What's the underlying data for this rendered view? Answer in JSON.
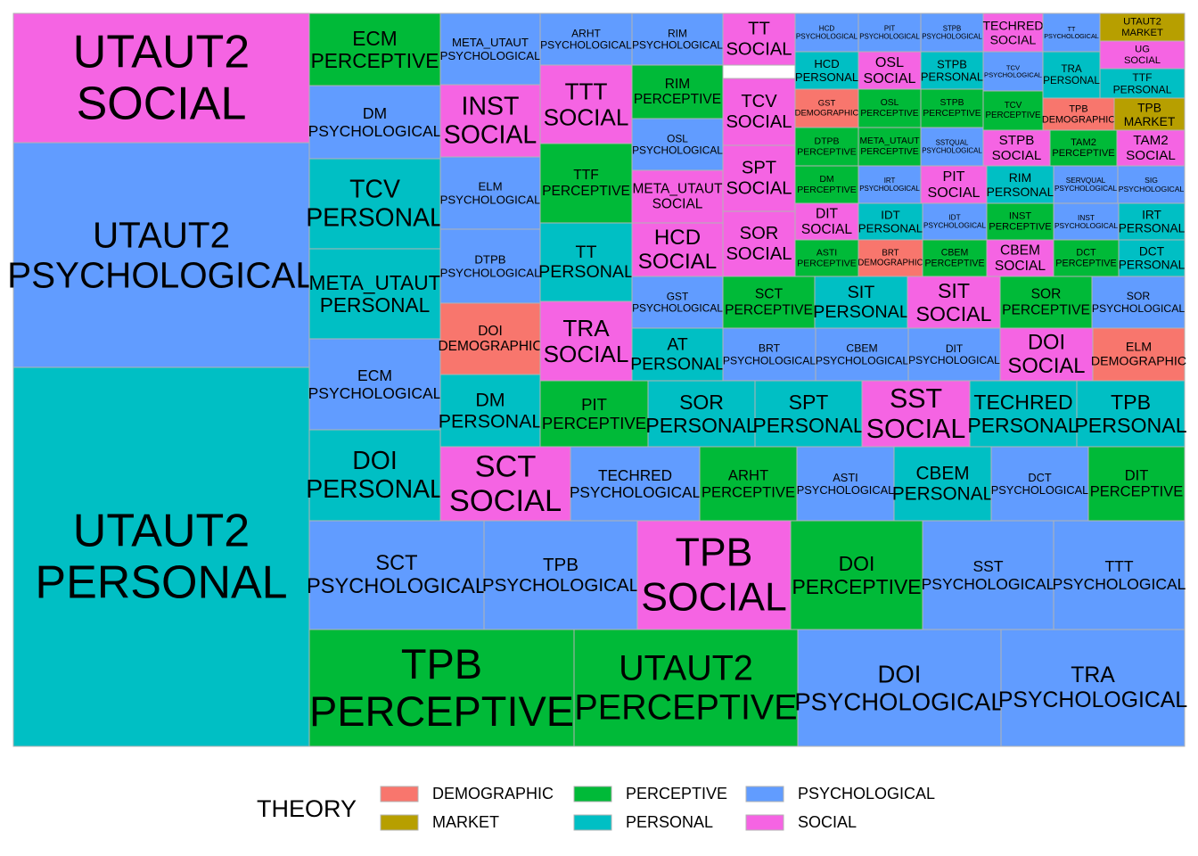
{
  "chart_data": {
    "type": "treemap",
    "title": "",
    "legend": {
      "title": "THEORY",
      "position": "bottom",
      "entries": [
        {
          "label": "DEMOGRAPHIC",
          "color": "#F8766D"
        },
        {
          "label": "MARKET",
          "color": "#B79F00"
        },
        {
          "label": "PERCEPTIVE",
          "color": "#00BA38"
        },
        {
          "label": "PERSONAL",
          "color": "#00BFC4"
        },
        {
          "label": "PSYCHOLOGICAL",
          "color": "#619CFF"
        },
        {
          "label": "SOCIAL",
          "color": "#F564E3"
        }
      ]
    },
    "tiles": [
      {
        "label": [
          "UTAUT2",
          "SOCIAL"
        ],
        "group": "SOCIAL"
      },
      {
        "label": [
          "UTAUT2",
          "PSYCHOLOGICAL"
        ],
        "group": "PSYCHOLOGICAL"
      },
      {
        "label": [
          "UTAUT2",
          "PERSONAL"
        ],
        "group": "PERSONAL"
      },
      {
        "label": [
          "ECM",
          "PERCEPTIVE"
        ],
        "group": "PERCEPTIVE"
      },
      {
        "label": [
          "DM",
          "PSYCHOLOGICAL"
        ],
        "group": "PSYCHOLOGICAL"
      },
      {
        "label": [
          "TCV",
          "PERSONAL"
        ],
        "group": "PERSONAL"
      },
      {
        "label": [
          "META_UTAUT",
          "PERSONAL"
        ],
        "group": "PERSONAL"
      },
      {
        "label": [
          "ECM",
          "PSYCHOLOGICAL"
        ],
        "group": "PSYCHOLOGICAL"
      },
      {
        "label": [
          "DOI",
          "PERSONAL"
        ],
        "group": "PERSONAL"
      },
      {
        "label": [
          "META_UTAUT",
          "PSYCHOLOGICAL"
        ],
        "group": "PSYCHOLOGICAL"
      },
      {
        "label": [
          "INST",
          "SOCIAL"
        ],
        "group": "SOCIAL"
      },
      {
        "label": [
          "ELM",
          "PSYCHOLOGICAL"
        ],
        "group": "PSYCHOLOGICAL"
      },
      {
        "label": [
          "DTPB",
          "PSYCHOLOGICAL"
        ],
        "group": "PSYCHOLOGICAL"
      },
      {
        "label": [
          "DOI",
          "DEMOGRAPHIC"
        ],
        "group": "DEMOGRAPHIC"
      },
      {
        "label": [
          "DM",
          "PERSONAL"
        ],
        "group": "PERSONAL"
      },
      {
        "label": [
          "ARHT",
          "PSYCHOLOGICAL"
        ],
        "group": "PSYCHOLOGICAL"
      },
      {
        "label": [
          "TTT",
          "SOCIAL"
        ],
        "group": "SOCIAL"
      },
      {
        "label": [
          "TTF",
          "PERCEPTIVE"
        ],
        "group": "PERCEPTIVE"
      },
      {
        "label": [
          "TT",
          "PERSONAL"
        ],
        "group": "PERSONAL"
      },
      {
        "label": [
          "TRA",
          "SOCIAL"
        ],
        "group": "SOCIAL"
      },
      {
        "label": [
          "RIM",
          "PSYCHOLOGICAL"
        ],
        "group": "PSYCHOLOGICAL"
      },
      {
        "label": [
          "RIM",
          "PERCEPTIVE"
        ],
        "group": "PERCEPTIVE"
      },
      {
        "label": [
          "OSL",
          "PSYCHOLOGICAL"
        ],
        "group": "PSYCHOLOGICAL"
      },
      {
        "label": [
          "META_UTAUT",
          "SOCIAL"
        ],
        "group": "SOCIAL"
      },
      {
        "label": [
          "HCD",
          "SOCIAL"
        ],
        "group": "SOCIAL"
      },
      {
        "label": [
          "GST",
          "PSYCHOLOGICAL"
        ],
        "group": "PSYCHOLOGICAL"
      },
      {
        "label": [
          "AT",
          "PERSONAL"
        ],
        "group": "PERSONAL"
      },
      {
        "label": [
          "TT",
          "SOCIAL"
        ],
        "group": "SOCIAL"
      },
      {
        "label": [
          "TCV",
          "SOCIAL"
        ],
        "group": "SOCIAL"
      },
      {
        "label": [
          "SPT",
          "SOCIAL"
        ],
        "group": "SOCIAL"
      },
      {
        "label": [
          "SOR",
          "SOCIAL"
        ],
        "group": "SOCIAL"
      },
      {
        "label": [
          "HCD",
          "PSYCHOLOGICAL"
        ],
        "group": "PSYCHOLOGICAL"
      },
      {
        "label": [
          "PIT",
          "PSYCHOLOGICAL"
        ],
        "group": "PSYCHOLOGICAL"
      },
      {
        "label": [
          "STPB",
          "PSYCHOLOGICAL"
        ],
        "group": "PSYCHOLOGICAL"
      },
      {
        "label": [
          "TECHRED",
          "SOCIAL"
        ],
        "group": "SOCIAL"
      },
      {
        "label": [
          "TT",
          "PSYCHOLOGICAL"
        ],
        "group": "PSYCHOLOGICAL"
      },
      {
        "label": [
          "UTAUT2",
          "MARKET"
        ],
        "group": "MARKET"
      },
      {
        "label": [
          "HCD",
          "PERSONAL"
        ],
        "group": "PERSONAL"
      },
      {
        "label": [
          "OSL",
          "SOCIAL"
        ],
        "group": "SOCIAL"
      },
      {
        "label": [
          "STPB",
          "PERSONAL"
        ],
        "group": "PERSONAL"
      },
      {
        "label": [
          "TCV",
          "PSYCHOLOGICAL"
        ],
        "group": "PSYCHOLOGICAL"
      },
      {
        "label": [
          "UG",
          "SOCIAL"
        ],
        "group": "SOCIAL"
      },
      {
        "label": [
          "TRA",
          "PERSONAL"
        ],
        "group": "PERSONAL"
      },
      {
        "label": [
          "TTF",
          "PERSONAL"
        ],
        "group": "PERSONAL"
      },
      {
        "label": [
          "GST",
          "DEMOGRAPHIC"
        ],
        "group": "DEMOGRAPHIC"
      },
      {
        "label": [
          "OSL",
          "PERCEPTIVE"
        ],
        "group": "PERCEPTIVE"
      },
      {
        "label": [
          "STPB",
          "PERCEPTIVE"
        ],
        "group": "PERCEPTIVE"
      },
      {
        "label": [
          "TCV",
          "PERCEPTIVE"
        ],
        "group": "PERCEPTIVE"
      },
      {
        "label": [
          "TPB",
          "DEMOGRAPHIC"
        ],
        "group": "DEMOGRAPHIC"
      },
      {
        "label": [
          "TPB",
          "MARKET"
        ],
        "group": "MARKET"
      },
      {
        "label": [
          "DTPB",
          "PERCEPTIVE"
        ],
        "group": "PERCEPTIVE"
      },
      {
        "label": [
          "META_UTAUT",
          "PERCEPTIVE"
        ],
        "group": "PERCEPTIVE"
      },
      {
        "label": [
          "SSTQUAL",
          "PSYCHOLOGICAL"
        ],
        "group": "PSYCHOLOGICAL"
      },
      {
        "label": [
          "STPB",
          "SOCIAL"
        ],
        "group": "SOCIAL"
      },
      {
        "label": [
          "TAM2",
          "PERCEPTIVE"
        ],
        "group": "PERCEPTIVE"
      },
      {
        "label": [
          "TAM2",
          "SOCIAL"
        ],
        "group": "SOCIAL"
      },
      {
        "label": [
          "DM",
          "PERCEPTIVE"
        ],
        "group": "PERCEPTIVE"
      },
      {
        "label": [
          "IRT",
          "PSYCHOLOGICAL"
        ],
        "group": "PSYCHOLOGICAL"
      },
      {
        "label": [
          "PIT",
          "SOCIAL"
        ],
        "group": "SOCIAL"
      },
      {
        "label": [
          "RIM",
          "PERSONAL"
        ],
        "group": "PERSONAL"
      },
      {
        "label": [
          "SERVQUAL",
          "PSYCHOLOGICAL"
        ],
        "group": "PSYCHOLOGICAL"
      },
      {
        "label": [
          "SIG",
          "PSYCHOLOGICAL"
        ],
        "group": "PSYCHOLOGICAL"
      },
      {
        "label": [
          "DIT",
          "SOCIAL"
        ],
        "group": "SOCIAL"
      },
      {
        "label": [
          "IDT",
          "PERSONAL"
        ],
        "group": "PERSONAL"
      },
      {
        "label": [
          "IDT",
          "PSYCHOLOGICAL"
        ],
        "group": "PSYCHOLOGICAL"
      },
      {
        "label": [
          "INST",
          "PERCEPTIVE"
        ],
        "group": "PERCEPTIVE"
      },
      {
        "label": [
          "INST",
          "PSYCHOLOGICAL"
        ],
        "group": "PSYCHOLOGICAL"
      },
      {
        "label": [
          "IRT",
          "PERSONAL"
        ],
        "group": "PERSONAL"
      },
      {
        "label": [
          "ASTI",
          "PERCEPTIVE"
        ],
        "group": "PERCEPTIVE"
      },
      {
        "label": [
          "BRT",
          "DEMOGRAPHIC"
        ],
        "group": "DEMOGRAPHIC"
      },
      {
        "label": [
          "CBEM",
          "PERCEPTIVE"
        ],
        "group": "PERCEPTIVE"
      },
      {
        "label": [
          "CBEM",
          "SOCIAL"
        ],
        "group": "SOCIAL"
      },
      {
        "label": [
          "DCT",
          "PERCEPTIVE"
        ],
        "group": "PERCEPTIVE"
      },
      {
        "label": [
          "DCT",
          "PERSONAL"
        ],
        "group": "PERSONAL"
      },
      {
        "label": [
          "SCT",
          "PERCEPTIVE"
        ],
        "group": "PERCEPTIVE"
      },
      {
        "label": [
          "SIT",
          "PERSONAL"
        ],
        "group": "PERSONAL"
      },
      {
        "label": [
          "SIT",
          "SOCIAL"
        ],
        "group": "SOCIAL"
      },
      {
        "label": [
          "SOR",
          "PERCEPTIVE"
        ],
        "group": "PERCEPTIVE"
      },
      {
        "label": [
          "SOR",
          "PSYCHOLOGICAL"
        ],
        "group": "PSYCHOLOGICAL"
      },
      {
        "label": [
          "BRT",
          "PSYCHOLOGICAL"
        ],
        "group": "PSYCHOLOGICAL"
      },
      {
        "label": [
          "CBEM",
          "PSYCHOLOGICAL"
        ],
        "group": "PSYCHOLOGICAL"
      },
      {
        "label": [
          "DIT",
          "PSYCHOLOGICAL"
        ],
        "group": "PSYCHOLOGICAL"
      },
      {
        "label": [
          "DOI",
          "SOCIAL"
        ],
        "group": "SOCIAL"
      },
      {
        "label": [
          "ELM",
          "DEMOGRAPHIC"
        ],
        "group": "DEMOGRAPHIC"
      },
      {
        "label": [
          "PIT",
          "PERCEPTIVE"
        ],
        "group": "PERCEPTIVE"
      },
      {
        "label": [
          "SOR",
          "PERSONAL"
        ],
        "group": "PERSONAL"
      },
      {
        "label": [
          "SPT",
          "PERSONAL"
        ],
        "group": "PERSONAL"
      },
      {
        "label": [
          "SST",
          "SOCIAL"
        ],
        "group": "SOCIAL"
      },
      {
        "label": [
          "TECHRED",
          "PERSONAL"
        ],
        "group": "PERSONAL"
      },
      {
        "label": [
          "TPB",
          "PERSONAL"
        ],
        "group": "PERSONAL"
      },
      {
        "label": [
          "SCT",
          "SOCIAL"
        ],
        "group": "SOCIAL"
      },
      {
        "label": [
          "TECHRED",
          "PSYCHOLOGICAL"
        ],
        "group": "PSYCHOLOGICAL"
      },
      {
        "label": [
          "ARHT",
          "PERCEPTIVE"
        ],
        "group": "PERCEPTIVE"
      },
      {
        "label": [
          "ASTI",
          "PSYCHOLOGICAL"
        ],
        "group": "PSYCHOLOGICAL"
      },
      {
        "label": [
          "CBEM",
          "PERSONAL"
        ],
        "group": "PERSONAL"
      },
      {
        "label": [
          "DCT",
          "PSYCHOLOGICAL"
        ],
        "group": "PSYCHOLOGICAL"
      },
      {
        "label": [
          "DIT",
          "PERCEPTIVE"
        ],
        "group": "PERCEPTIVE"
      },
      {
        "label": [
          "SCT",
          "PSYCHOLOGICAL"
        ],
        "group": "PSYCHOLOGICAL"
      },
      {
        "label": [
          "TPB",
          "PSYCHOLOGICAL"
        ],
        "group": "PSYCHOLOGICAL"
      },
      {
        "label": [
          "TPB",
          "SOCIAL"
        ],
        "group": "SOCIAL"
      },
      {
        "label": [
          "DOI",
          "PERCEPTIVE"
        ],
        "group": "PERCEPTIVE"
      },
      {
        "label": [
          "SST",
          "PSYCHOLOGICAL"
        ],
        "group": "PSYCHOLOGICAL"
      },
      {
        "label": [
          "TTT",
          "PSYCHOLOGICAL"
        ],
        "group": "PSYCHOLOGICAL"
      },
      {
        "label": [
          "TPB",
          "PERCEPTIVE"
        ],
        "group": "PERCEPTIVE"
      },
      {
        "label": [
          "UTAUT2",
          "PERCEPTIVE"
        ],
        "group": "PERCEPTIVE"
      },
      {
        "label": [
          "DOI",
          "PSYCHOLOGICAL"
        ],
        "group": "PSYCHOLOGICAL"
      },
      {
        "label": [
          "TRA",
          "PSYCHOLOGICAL"
        ],
        "group": "PSYCHOLOGICAL"
      }
    ]
  }
}
